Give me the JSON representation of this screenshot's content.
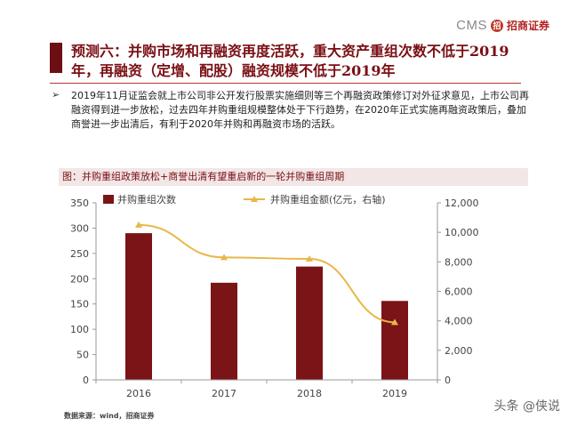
{
  "logo": {
    "cms": "CMS",
    "mark": "招",
    "cn": "招商证券"
  },
  "title": "预测六：并购市场和再融资再度活跃，重大资产重组次数不低于2019年，再融资（定增、配股）融资规模不低于2019年",
  "bullet_glyph": "➢",
  "paragraph": "2019年11月证监会就上市公司非公开发行股票实施细则等三个再融资政策修订对外征求意见，上市公司再融资得到进一步放松，过去四年并购重组规模整体处于下行趋势，在2020年正式实施再融资政策后，叠加商誉进一步出清后，有利于2020年并购和再融资市场的活跃。",
  "chart_caption": "图：并购重组政策放松+商誉出清有望重启新的一轮并购重组周期",
  "source": "数据来源：wind，招商证券",
  "watermark": "头条 @侠说",
  "chart_data": {
    "type": "bar",
    "categories": [
      "2016",
      "2017",
      "2018",
      "2019"
    ],
    "series": [
      {
        "name": "并购重组次数",
        "type": "bar",
        "axis": "left",
        "values": [
          290,
          192,
          224,
          156
        ],
        "color": "#7b1416"
      },
      {
        "name": "并购重组金额(亿元，右轴)",
        "type": "line",
        "axis": "right",
        "values": [
          10500,
          8300,
          8200,
          3900
        ],
        "color": "#e8b74a"
      }
    ],
    "ylim_left": [
      0,
      350
    ],
    "yticks_left": [
      "0",
      "50",
      "100",
      "150",
      "200",
      "250",
      "300",
      "350"
    ],
    "ylim_right": [
      0,
      12000
    ],
    "yticks_right": [
      "0",
      "2,000",
      "4,000",
      "6,000",
      "8,000",
      "10,000",
      "12,000"
    ],
    "legend_position": "top-left",
    "grid": false
  }
}
